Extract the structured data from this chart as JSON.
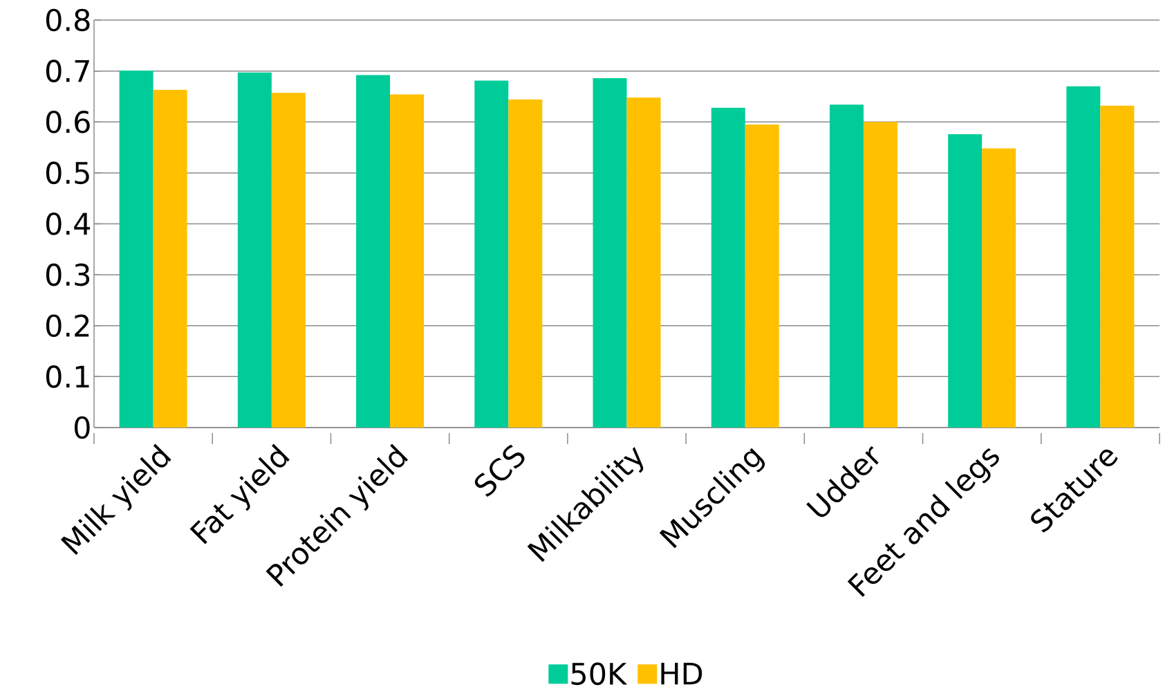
{
  "chart_data": {
    "type": "bar",
    "categories": [
      "Milk yield",
      "Fat yield",
      "Protein yield",
      "SCS",
      "Milkability",
      "Muscling",
      "Udder",
      "Feet and legs",
      "Stature"
    ],
    "series": [
      {
        "name": "50K",
        "color": "#00cc99",
        "values": [
          0.701,
          0.697,
          0.692,
          0.681,
          0.686,
          0.628,
          0.634,
          0.576,
          0.67
        ]
      },
      {
        "name": "HD",
        "color": "#ffc000",
        "values": [
          0.663,
          0.657,
          0.654,
          0.644,
          0.648,
          0.595,
          0.6,
          0.548,
          0.632
        ]
      }
    ],
    "ylim": [
      0,
      0.8
    ],
    "yticks": [
      0,
      0.1,
      0.2,
      0.3,
      0.4,
      0.5,
      0.6,
      0.7,
      0.8
    ],
    "grid": "y",
    "legend": "bottom"
  }
}
